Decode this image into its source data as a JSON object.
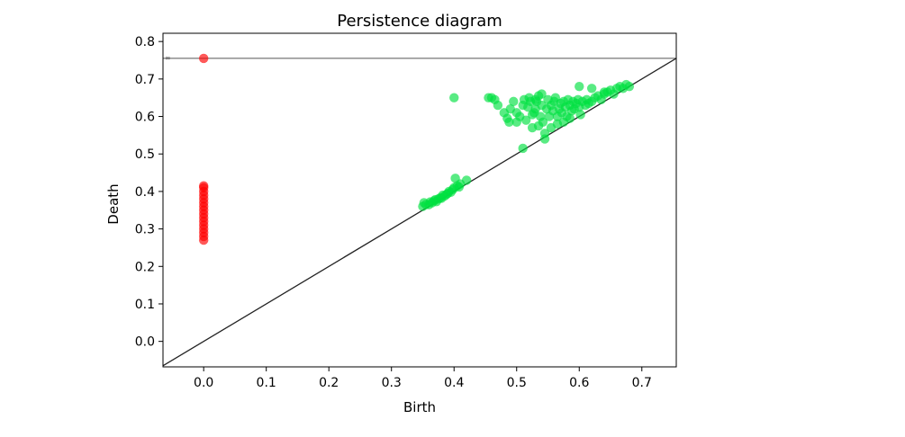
{
  "chart_data": {
    "type": "scatter",
    "title": "Persistence diagram",
    "xlabel": "Birth",
    "ylabel": "Death",
    "xlim": [
      -0.065,
      0.755
    ],
    "ylim": [
      -0.068,
      0.822
    ],
    "xticks": [
      "0.0",
      "0.1",
      "0.2",
      "0.3",
      "0.4",
      "0.5",
      "0.6",
      "0.7"
    ],
    "yticks": [
      "0.0",
      "0.1",
      "0.2",
      "0.3",
      "0.4",
      "0.5",
      "0.6",
      "0.7",
      "0.8"
    ],
    "infinity_label": "∞",
    "infinity_line_y": 0.755,
    "diagonal": true,
    "grid": false,
    "series": [
      {
        "color": "#ff0000",
        "points": [
          [
            0.0,
            0.755
          ],
          [
            0.0,
            0.27
          ],
          [
            0.0,
            0.28
          ],
          [
            0.0,
            0.29
          ],
          [
            0.0,
            0.3
          ],
          [
            0.0,
            0.31
          ],
          [
            0.0,
            0.32
          ],
          [
            0.0,
            0.33
          ],
          [
            0.0,
            0.34
          ],
          [
            0.0,
            0.35
          ],
          [
            0.0,
            0.36
          ],
          [
            0.0,
            0.37
          ],
          [
            0.0,
            0.38
          ],
          [
            0.0,
            0.39
          ],
          [
            0.0,
            0.4
          ],
          [
            0.0,
            0.41
          ],
          [
            0.0,
            0.415
          ]
        ]
      },
      {
        "color": "#00e040",
        "points": [
          [
            0.35,
            0.36
          ],
          [
            0.352,
            0.37
          ],
          [
            0.355,
            0.365
          ],
          [
            0.36,
            0.365
          ],
          [
            0.362,
            0.372
          ],
          [
            0.365,
            0.37
          ],
          [
            0.368,
            0.375
          ],
          [
            0.37,
            0.378
          ],
          [
            0.372,
            0.373
          ],
          [
            0.375,
            0.38
          ],
          [
            0.378,
            0.383
          ],
          [
            0.38,
            0.382
          ],
          [
            0.382,
            0.39
          ],
          [
            0.385,
            0.388
          ],
          [
            0.388,
            0.392
          ],
          [
            0.39,
            0.395
          ],
          [
            0.392,
            0.4
          ],
          [
            0.395,
            0.398
          ],
          [
            0.398,
            0.405
          ],
          [
            0.4,
            0.41
          ],
          [
            0.402,
            0.435
          ],
          [
            0.405,
            0.415
          ],
          [
            0.408,
            0.412
          ],
          [
            0.41,
            0.42
          ],
          [
            0.42,
            0.43
          ],
          [
            0.4,
            0.65
          ],
          [
            0.455,
            0.65
          ],
          [
            0.46,
            0.65
          ],
          [
            0.465,
            0.645
          ],
          [
            0.47,
            0.63
          ],
          [
            0.48,
            0.61
          ],
          [
            0.485,
            0.595
          ],
          [
            0.488,
            0.585
          ],
          [
            0.49,
            0.62
          ],
          [
            0.495,
            0.64
          ],
          [
            0.5,
            0.61
          ],
          [
            0.505,
            0.6
          ],
          [
            0.51,
            0.63
          ],
          [
            0.512,
            0.645
          ],
          [
            0.515,
            0.59
          ],
          [
            0.518,
            0.625
          ],
          [
            0.52,
            0.65
          ],
          [
            0.522,
            0.64
          ],
          [
            0.525,
            0.57
          ],
          [
            0.528,
            0.61
          ],
          [
            0.53,
            0.62
          ],
          [
            0.532,
            0.64
          ],
          [
            0.535,
            0.655
          ],
          [
            0.538,
            0.6
          ],
          [
            0.54,
            0.63
          ],
          [
            0.542,
            0.585
          ],
          [
            0.545,
            0.54
          ],
          [
            0.548,
            0.62
          ],
          [
            0.55,
            0.645
          ],
          [
            0.552,
            0.6
          ],
          [
            0.555,
            0.63
          ],
          [
            0.558,
            0.615
          ],
          [
            0.56,
            0.64
          ],
          [
            0.562,
            0.65
          ],
          [
            0.565,
            0.6
          ],
          [
            0.568,
            0.62
          ],
          [
            0.57,
            0.635
          ],
          [
            0.572,
            0.61
          ],
          [
            0.575,
            0.64
          ],
          [
            0.578,
            0.625
          ],
          [
            0.58,
            0.6
          ],
          [
            0.582,
            0.645
          ],
          [
            0.585,
            0.63
          ],
          [
            0.588,
            0.615
          ],
          [
            0.59,
            0.64
          ],
          [
            0.592,
            0.62
          ],
          [
            0.595,
            0.635
          ],
          [
            0.598,
            0.645
          ],
          [
            0.6,
            0.625
          ],
          [
            0.602,
            0.605
          ],
          [
            0.605,
            0.64
          ],
          [
            0.61,
            0.63
          ],
          [
            0.612,
            0.645
          ],
          [
            0.615,
            0.635
          ],
          [
            0.62,
            0.64
          ],
          [
            0.625,
            0.65
          ],
          [
            0.63,
            0.655
          ],
          [
            0.635,
            0.645
          ],
          [
            0.64,
            0.66
          ],
          [
            0.645,
            0.665
          ],
          [
            0.65,
            0.67
          ],
          [
            0.655,
            0.66
          ],
          [
            0.66,
            0.675
          ],
          [
            0.665,
            0.68
          ],
          [
            0.67,
            0.675
          ],
          [
            0.675,
            0.685
          ],
          [
            0.68,
            0.68
          ],
          [
            0.6,
            0.68
          ],
          [
            0.62,
            0.675
          ],
          [
            0.64,
            0.665
          ],
          [
            0.51,
            0.515
          ],
          [
            0.5,
            0.585
          ],
          [
            0.535,
            0.575
          ],
          [
            0.545,
            0.555
          ],
          [
            0.555,
            0.57
          ],
          [
            0.565,
            0.58
          ],
          [
            0.575,
            0.585
          ],
          [
            0.585,
            0.595
          ],
          [
            0.525,
            0.605
          ],
          [
            0.53,
            0.645
          ],
          [
            0.54,
            0.66
          ]
        ]
      }
    ]
  }
}
